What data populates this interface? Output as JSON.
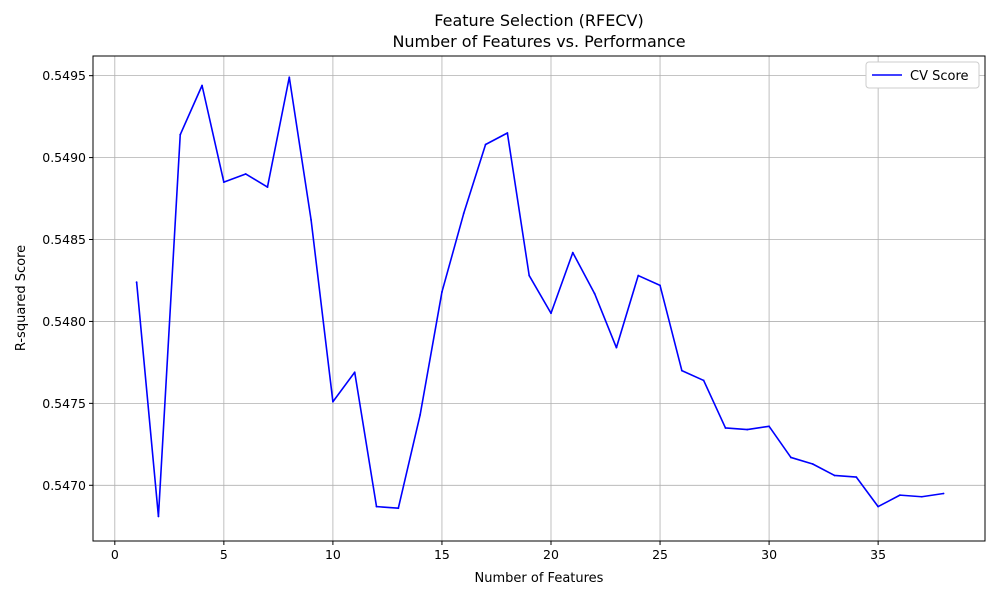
{
  "chart_data": {
    "type": "line",
    "title": "Feature Selection (RFECV)",
    "subtitle": "Number of Features vs. Performance",
    "xlabel": "Number of Features",
    "ylabel": "R-squared Score",
    "xlim": [
      -1.0,
      39.9
    ],
    "ylim": [
      0.54666,
      0.54962
    ],
    "xticks": [
      0,
      5,
      10,
      15,
      20,
      25,
      30,
      35
    ],
    "yticks": [
      0.547,
      0.5475,
      0.548,
      0.5485,
      0.549,
      0.5495
    ],
    "grid": true,
    "legend_position": "top-right",
    "series": [
      {
        "name": "CV Score",
        "color": "#0000ff",
        "x": [
          1,
          2,
          3,
          4,
          5,
          6,
          7,
          8,
          9,
          10,
          11,
          12,
          13,
          14,
          15,
          16,
          17,
          18,
          19,
          20,
          21,
          22,
          23,
          24,
          25,
          26,
          27,
          28,
          29,
          30,
          31,
          32,
          33,
          34,
          35,
          36,
          37,
          38
        ],
        "y": [
          0.54824,
          0.54681,
          0.54914,
          0.54944,
          0.54885,
          0.5489,
          0.54882,
          0.54949,
          0.54862,
          0.54751,
          0.54769,
          0.54687,
          0.54686,
          0.54743,
          0.54818,
          0.54866,
          0.54908,
          0.54915,
          0.54828,
          0.54805,
          0.54842,
          0.54817,
          0.54784,
          0.54828,
          0.54822,
          0.5477,
          0.54764,
          0.54735,
          0.54734,
          0.54736,
          0.54717,
          0.54713,
          0.54706,
          0.54705,
          0.54687,
          0.54694,
          0.54693,
          0.54695
        ]
      }
    ]
  }
}
